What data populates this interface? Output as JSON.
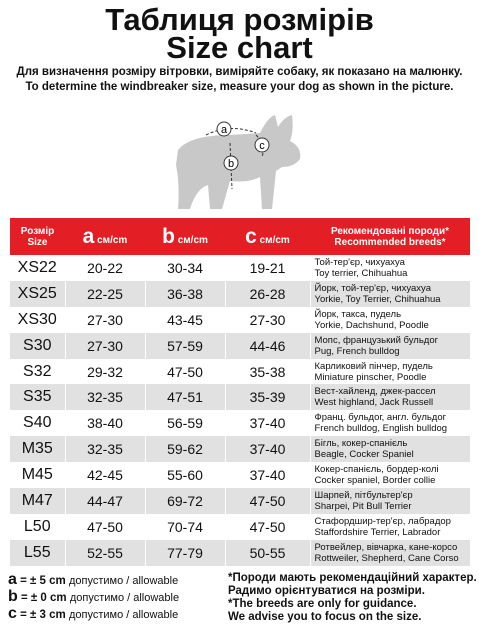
{
  "header": {
    "title": [
      "Таблиця розмірів",
      "Size chart"
    ],
    "subtitle": [
      "Для визначення розміру вітровки, виміряйте собаку, як показано на малюнку.",
      "To determine the windbreaker size, measure your dog as shown in the picture."
    ]
  },
  "figure": {
    "labels": [
      "a",
      "b",
      "c"
    ]
  },
  "table": {
    "header": [
      [
        "Розмір",
        "Size"
      ],
      [
        "a",
        "см/cm"
      ],
      [
        "b",
        "см/cm"
      ],
      [
        "c",
        "см/cm"
      ],
      [
        "Рекомендовані породи*",
        "Recommended breeds*"
      ]
    ],
    "rows": [
      [
        "XS22",
        "20-22",
        "30-34",
        "19-21",
        "Той-тер'єр, чихуахуа",
        "Toy terrier, Chihuahua"
      ],
      [
        "XS25",
        "22-25",
        "36-38",
        "26-28",
        "Йорк, той-тер'єр, чихуахуа",
        "Yorkie, Toy Terrier, Chihuahua"
      ],
      [
        "XS30",
        "27-30",
        "43-45",
        "27-30",
        "Йорк, такса, пудель",
        "Yorkie, Dachshund, Poodle"
      ],
      [
        "S30",
        "27-30",
        "57-59",
        "44-46",
        "Мопс, французький бульдог",
        "Pug, French bulldog"
      ],
      [
        "S32",
        "29-32",
        "47-50",
        "35-38",
        "Карликовий пінчер, пудель",
        "Miniature pinscher, Poodle"
      ],
      [
        "S35",
        "32-35",
        "47-51",
        "35-39",
        "Вест-хайленд, джек-рассел",
        "West highland, Jack Russell"
      ],
      [
        "S40",
        "38-40",
        "56-59",
        "37-40",
        "Франц. бульдог, англ. бульдог",
        "French bulldog, English bulldog"
      ],
      [
        "M35",
        "32-35",
        "59-62",
        "37-40",
        "Бігль, кокер-спанієль",
        "Beagle, Cocker Spaniel"
      ],
      [
        "M45",
        "42-45",
        "55-60",
        "37-40",
        "Кокер-спанієль, бордер-колі",
        "Cocker spaniel, Border collie"
      ],
      [
        "M47",
        "44-47",
        "69-72",
        "47-50",
        "Шарпей, пітбультер'єр",
        "Sharpei, Pit Bull Terrier"
      ],
      [
        "L50",
        "47-50",
        "70-74",
        "47-50",
        "Стафордшир-тер'єр, лабрадор",
        "Staffordshire Terrier, Labrador"
      ],
      [
        "L55",
        "52-55",
        "77-79",
        "50-55",
        "Ротвейлер, вівчарка, кане-корсо",
        "Rottweiler, Shepherd, Cane Corso"
      ]
    ]
  },
  "legend": [
    [
      "a",
      "= ± 5 cm",
      "допустимо / allowable"
    ],
    [
      "b",
      "= ± 0 cm",
      "допустимо / allowable"
    ],
    [
      "c",
      "= ± 3 cm",
      "допустимо / allowable"
    ]
  ],
  "notes": [
    "*Породи мають рекомендаційний характер.",
    "Радимо орієнтуватися на розміри.",
    "*The breeds are only for guidance.",
    "We advise you to focus on the size."
  ]
}
